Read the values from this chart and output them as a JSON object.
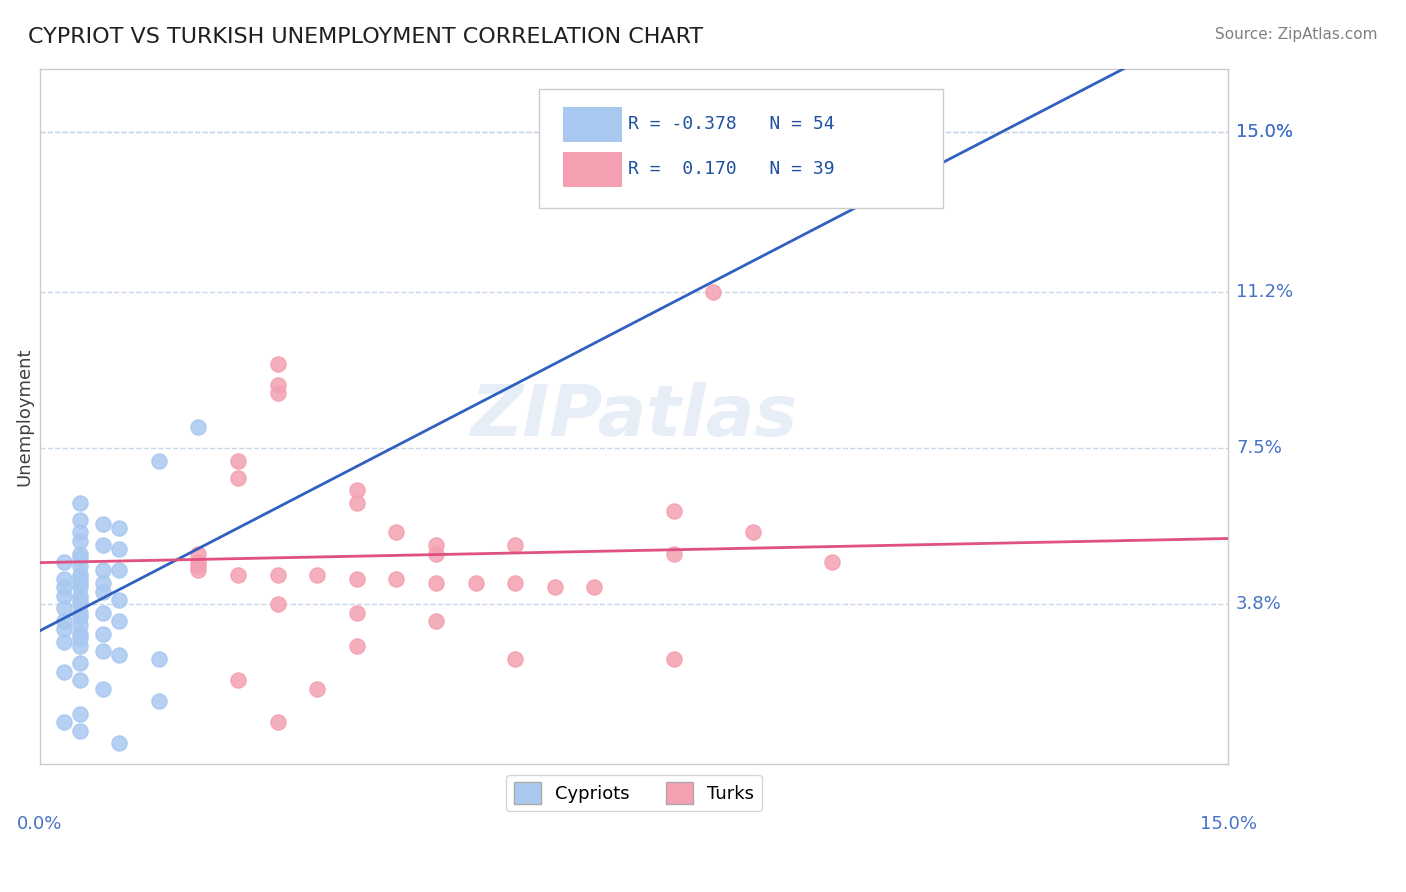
{
  "title": "CYPRIOT VS TURKISH UNEMPLOYMENT CORRELATION CHART",
  "source": "Source: ZipAtlas.com",
  "ylabel": "Unemployment",
  "ytick_labels": [
    "15.0%",
    "11.2%",
    "7.5%",
    "3.8%"
  ],
  "ytick_values": [
    0.15,
    0.112,
    0.075,
    0.038
  ],
  "xlim": [
    0.0,
    0.15
  ],
  "ylim": [
    0.0,
    0.165
  ],
  "watermark": "ZIPatlas",
  "cypriot_color": "#a8c8f0",
  "turk_color": "#f4a0b0",
  "cypriot_line_color": "#3060c0",
  "turk_line_color": "#e05080",
  "cypriot_scatter": [
    [
      0.02,
      0.08
    ],
    [
      0.015,
      0.072
    ],
    [
      0.005,
      0.062
    ],
    [
      0.005,
      0.058
    ],
    [
      0.008,
      0.057
    ],
    [
      0.01,
      0.056
    ],
    [
      0.005,
      0.055
    ],
    [
      0.005,
      0.053
    ],
    [
      0.008,
      0.052
    ],
    [
      0.01,
      0.051
    ],
    [
      0.005,
      0.05
    ],
    [
      0.005,
      0.049
    ],
    [
      0.003,
      0.048
    ],
    [
      0.005,
      0.047
    ],
    [
      0.008,
      0.046
    ],
    [
      0.01,
      0.046
    ],
    [
      0.005,
      0.045
    ],
    [
      0.003,
      0.044
    ],
    [
      0.005,
      0.044
    ],
    [
      0.008,
      0.043
    ],
    [
      0.005,
      0.043
    ],
    [
      0.003,
      0.042
    ],
    [
      0.005,
      0.042
    ],
    [
      0.008,
      0.041
    ],
    [
      0.005,
      0.04
    ],
    [
      0.003,
      0.04
    ],
    [
      0.005,
      0.039
    ],
    [
      0.01,
      0.039
    ],
    [
      0.005,
      0.038
    ],
    [
      0.003,
      0.037
    ],
    [
      0.005,
      0.036
    ],
    [
      0.008,
      0.036
    ],
    [
      0.005,
      0.035
    ],
    [
      0.003,
      0.034
    ],
    [
      0.01,
      0.034
    ],
    [
      0.005,
      0.033
    ],
    [
      0.003,
      0.032
    ],
    [
      0.005,
      0.031
    ],
    [
      0.008,
      0.031
    ],
    [
      0.005,
      0.03
    ],
    [
      0.003,
      0.029
    ],
    [
      0.005,
      0.028
    ],
    [
      0.008,
      0.027
    ],
    [
      0.01,
      0.026
    ],
    [
      0.015,
      0.025
    ],
    [
      0.005,
      0.024
    ],
    [
      0.003,
      0.022
    ],
    [
      0.005,
      0.02
    ],
    [
      0.008,
      0.018
    ],
    [
      0.015,
      0.015
    ],
    [
      0.005,
      0.012
    ],
    [
      0.003,
      0.01
    ],
    [
      0.005,
      0.008
    ],
    [
      0.01,
      0.005
    ]
  ],
  "turk_scatter": [
    [
      0.03,
      0.095
    ],
    [
      0.03,
      0.09
    ],
    [
      0.03,
      0.088
    ],
    [
      0.025,
      0.072
    ],
    [
      0.025,
      0.068
    ],
    [
      0.04,
      0.065
    ],
    [
      0.04,
      0.062
    ],
    [
      0.045,
      0.055
    ],
    [
      0.05,
      0.052
    ],
    [
      0.05,
      0.05
    ],
    [
      0.06,
      0.052
    ],
    [
      0.02,
      0.05
    ],
    [
      0.02,
      0.048
    ],
    [
      0.02,
      0.047
    ],
    [
      0.02,
      0.046
    ],
    [
      0.025,
      0.045
    ],
    [
      0.03,
      0.045
    ],
    [
      0.035,
      0.045
    ],
    [
      0.04,
      0.044
    ],
    [
      0.045,
      0.044
    ],
    [
      0.05,
      0.043
    ],
    [
      0.055,
      0.043
    ],
    [
      0.06,
      0.043
    ],
    [
      0.065,
      0.042
    ],
    [
      0.07,
      0.042
    ],
    [
      0.08,
      0.05
    ],
    [
      0.08,
      0.06
    ],
    [
      0.09,
      0.055
    ],
    [
      0.1,
      0.048
    ],
    [
      0.03,
      0.038
    ],
    [
      0.04,
      0.036
    ],
    [
      0.05,
      0.034
    ],
    [
      0.04,
      0.028
    ],
    [
      0.06,
      0.025
    ],
    [
      0.08,
      0.025
    ],
    [
      0.025,
      0.02
    ],
    [
      0.035,
      0.018
    ],
    [
      0.085,
      0.112
    ],
    [
      0.03,
      0.01
    ]
  ],
  "background_color": "#ffffff",
  "grid_color": "#c8d8e8",
  "title_color": "#202020",
  "axis_label_color": "#4472c4",
  "source_color": "#808080"
}
